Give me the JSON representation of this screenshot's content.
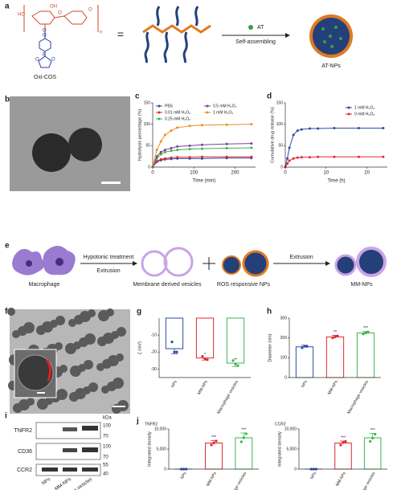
{
  "panel_labels": [
    "a",
    "b",
    "c",
    "d",
    "e",
    "f",
    "g",
    "h",
    "i",
    "j"
  ],
  "scheme_a": {
    "atoms": [
      "HO",
      "OH",
      "O",
      "O",
      "n",
      "O",
      "O",
      "B",
      "O",
      "O"
    ],
    "molecule_name": "Oxi-COS",
    "equals": "=",
    "agent": "AT",
    "process": "Self-assembling",
    "product": "AT-NPs"
  },
  "scheme_e": {
    "cell": "Macrophage",
    "step1": "Hypotonic treatment",
    "step2": "Extrusion",
    "vesicles": "Membrane derived vesicles",
    "plus": "+",
    "nps": "ROS responsive NPs",
    "step3": "Extrusion",
    "product": "MM-NPs"
  },
  "blot_i": {
    "unit": "kDa",
    "proteins": [
      "TNFR2",
      "CD36",
      "CCR2"
    ],
    "markers": [
      [
        "100",
        "70"
      ],
      [
        "100",
        "70"
      ],
      [
        "55",
        "40"
      ]
    ],
    "lanes": [
      "NPs",
      "MM-NPs",
      "Macrophage vesicles"
    ]
  },
  "chart_data": [
    {
      "type": "line",
      "xlabel": "Time (min)",
      "ylabel": "Hydrolysis percentage (%)",
      "x": [
        0,
        10,
        20,
        30,
        45,
        60,
        90,
        120,
        180,
        240
      ],
      "xlim": [
        0,
        250
      ],
      "xticks": [
        0,
        100,
        200
      ],
      "ylim": [
        0,
        150
      ],
      "yticks": [
        0,
        50,
        100,
        150
      ],
      "legend": "upper left",
      "series": [
        {
          "name": "PBS",
          "color": "#2b4ba0",
          "values": [
            0,
            12,
            16,
            18,
            19,
            20,
            20,
            20,
            21,
            21
          ]
        },
        {
          "name": "0.01 mM H₂O₂",
          "color": "#e0282e",
          "values": [
            0,
            14,
            18,
            20,
            22,
            23,
            23,
            24,
            24,
            24
          ]
        },
        {
          "name": "0.25 mM H₂O₂",
          "color": "#3cb44b",
          "values": [
            0,
            20,
            30,
            35,
            38,
            40,
            42,
            43,
            44,
            45
          ]
        },
        {
          "name": "0.5 mM H₂O₂",
          "color": "#7b3f9e",
          "values": [
            0,
            25,
            35,
            40,
            44,
            48,
            50,
            52,
            54,
            55
          ]
        },
        {
          "name": "1 mM H₂O₂",
          "color": "#f08c1e",
          "values": [
            0,
            40,
            60,
            75,
            85,
            92,
            96,
            98,
            99,
            100
          ]
        }
      ]
    },
    {
      "type": "line",
      "xlabel": "Time (h)",
      "ylabel": "Cumulative drug release (%)",
      "x": [
        0,
        0.5,
        1,
        2,
        3,
        4,
        6,
        8,
        12,
        18,
        24
      ],
      "xlim": [
        0,
        25
      ],
      "xticks": [
        0,
        10,
        20
      ],
      "ylim": [
        0,
        150
      ],
      "yticks": [
        0,
        50,
        100,
        150
      ],
      "legend": "upper right",
      "series": [
        {
          "name": "1 mM H₂O₂",
          "color": "#2b4ba0",
          "values": [
            0,
            20,
            45,
            75,
            85,
            88,
            90,
            90,
            91,
            91,
            91
          ]
        },
        {
          "name": "0 mM H₂O₂",
          "color": "#e0282e",
          "values": [
            0,
            8,
            15,
            20,
            22,
            23,
            23,
            24,
            24,
            24,
            24
          ]
        }
      ]
    },
    {
      "type": "bar",
      "ylabel": "ζ (mV)",
      "categories": [
        "NPs",
        "MM-NPs",
        "Macrophage vesicles"
      ],
      "values": [
        -18,
        -23.5,
        -26.5
      ],
      "errors": [
        3,
        1.2,
        2
      ],
      "points": [
        [
          -14,
          -20,
          -20
        ],
        [
          -22.5,
          -24,
          -24.5
        ],
        [
          -25,
          -27,
          -28
        ]
      ],
      "colors": [
        "#2b4ba0",
        "#e0282e",
        "#3cb44b"
      ],
      "annotations": [
        null,
        "*",
        "**"
      ],
      "ylim": [
        -35,
        0
      ],
      "yticks": [
        -10,
        -20,
        -30
      ]
    },
    {
      "type": "bar",
      "ylabel": "Diameter (nm)",
      "categories": [
        "NPs",
        "MM-NPs",
        "Macrophage vesicles"
      ],
      "values": [
        155,
        205,
        225
      ],
      "errors": [
        8,
        8,
        8
      ],
      "points": [
        [
          150,
          158,
          157
        ],
        [
          200,
          205,
          210
        ],
        [
          220,
          225,
          230
        ]
      ],
      "colors": [
        "#2b4ba0",
        "#e0282e",
        "#3cb44b"
      ],
      "annotations": [
        null,
        "**",
        "***"
      ],
      "ylim": [
        0,
        300
      ],
      "yticks": [
        0,
        100,
        200,
        300
      ]
    },
    {
      "type": "bar",
      "title": "TNFR2",
      "ylabel": "Integrated density",
      "categories": [
        "NPs",
        "MM-NPs",
        "Macrophage vesicles"
      ],
      "values": [
        0,
        6500,
        7800
      ],
      "errors": [
        0,
        600,
        1200
      ],
      "points": [
        [
          0,
          0,
          0
        ],
        [
          6000,
          6500,
          7000
        ],
        [
          6800,
          7800,
          8800
        ]
      ],
      "colors": [
        "#2b4ba0",
        "#e0282e",
        "#3cb44b"
      ],
      "annotations": [
        null,
        "***",
        "***"
      ],
      "ylim": [
        0,
        10000
      ],
      "yticks": [
        0,
        {
          "value": 5000,
          "label": "5,000"
        },
        {
          "value": 10000,
          "label": "10,000"
        }
      ]
    },
    {
      "type": "bar",
      "title": "CCR2",
      "ylabel": "Integrated density",
      "categories": [
        "NPs",
        "MM-NPs",
        "Macrophage vesicles"
      ],
      "values": [
        0,
        6500,
        7800
      ],
      "errors": [
        0,
        500,
        1100
      ],
      "points": [
        [
          0,
          0,
          0
        ],
        [
          6000,
          6600,
          6900
        ],
        [
          6900,
          7700,
          8700
        ]
      ],
      "colors": [
        "#2b4ba0",
        "#e0282e",
        "#3cb44b"
      ],
      "annotations": [
        null,
        "***",
        "***"
      ],
      "ylim": [
        0,
        10000
      ],
      "yticks": [
        0,
        {
          "value": 5000,
          "label": "5,000"
        },
        {
          "value": 10000,
          "label": "10,000"
        }
      ]
    }
  ]
}
